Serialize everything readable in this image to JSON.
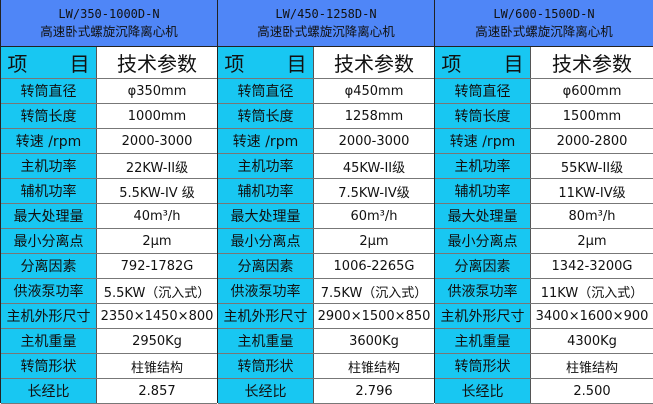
{
  "colors": {
    "header": "#4f86f7",
    "label": "#18c7f2"
  },
  "head_label": "项 目",
  "head_value": "技术参数",
  "tables": [
    {
      "model": "LW/350-1000D-N",
      "name": "高速卧式螺旋沉降离心机",
      "rows": [
        [
          "转筒直径",
          "φ350mm"
        ],
        [
          "转筒长度",
          "1000mm"
        ],
        [
          "转速 /rpm",
          "2000-3000"
        ],
        [
          "主机功率",
          "22KW-II级"
        ],
        [
          "辅机功率",
          "5.5KW-IV 级"
        ],
        [
          "最大处理量",
          "40m³/h"
        ],
        [
          "最小分离点",
          "2μm"
        ],
        [
          "分离因素",
          "792-1782G"
        ],
        [
          "供液泵功率",
          "5.5KW（沉入式）"
        ],
        [
          "主机外形尺寸",
          "2350×1450×800"
        ],
        [
          "主机重量",
          "2950Kg"
        ],
        [
          "转筒形状",
          "柱锥结构"
        ],
        [
          "长经比",
          "2.857"
        ]
      ]
    },
    {
      "model": "LW/450-1258D-N",
      "name": "高速卧式螺旋沉降离心机",
      "rows": [
        [
          "转筒直径",
          "φ450mm"
        ],
        [
          "转筒长度",
          "1258mm"
        ],
        [
          "转速 /rpm",
          "2000-3000"
        ],
        [
          "主机功率",
          "45KW-II级"
        ],
        [
          "辅机功率",
          "7.5KW-IV级"
        ],
        [
          "最大处理量",
          "60m³/h"
        ],
        [
          "最小分离点",
          "2μm"
        ],
        [
          "分离因素",
          "1006-2265G"
        ],
        [
          "供液泵功率",
          "7.5KW（沉入式）"
        ],
        [
          "主机外形尺寸",
          "2900×1500×850"
        ],
        [
          "主机重量",
          "3600Kg"
        ],
        [
          "转筒形状",
          "柱锥结构"
        ],
        [
          "长经比",
          "2.796"
        ]
      ]
    },
    {
      "model": "LW/600-1500D-N",
      "name": "高速卧式螺旋沉降离心机",
      "rows": [
        [
          "转筒直径",
          "φ600mm"
        ],
        [
          "转筒长度",
          "1500mm"
        ],
        [
          "转速 /rpm",
          "2000-2800"
        ],
        [
          "主机功率",
          "55KW-II级"
        ],
        [
          "辅机功率",
          "11KW-IV级"
        ],
        [
          "最大处理量",
          "80m³/h"
        ],
        [
          "最小分离点",
          "2μm"
        ],
        [
          "分离因素",
          "1342-3200G"
        ],
        [
          "供液泵功率",
          "11KW（沉入式）"
        ],
        [
          "主机外形尺寸",
          "3400×1600×900"
        ],
        [
          "主机重量",
          "4300Kg"
        ],
        [
          "转筒形状",
          "柱锥结构"
        ],
        [
          "长经比",
          "2.500"
        ]
      ]
    }
  ]
}
